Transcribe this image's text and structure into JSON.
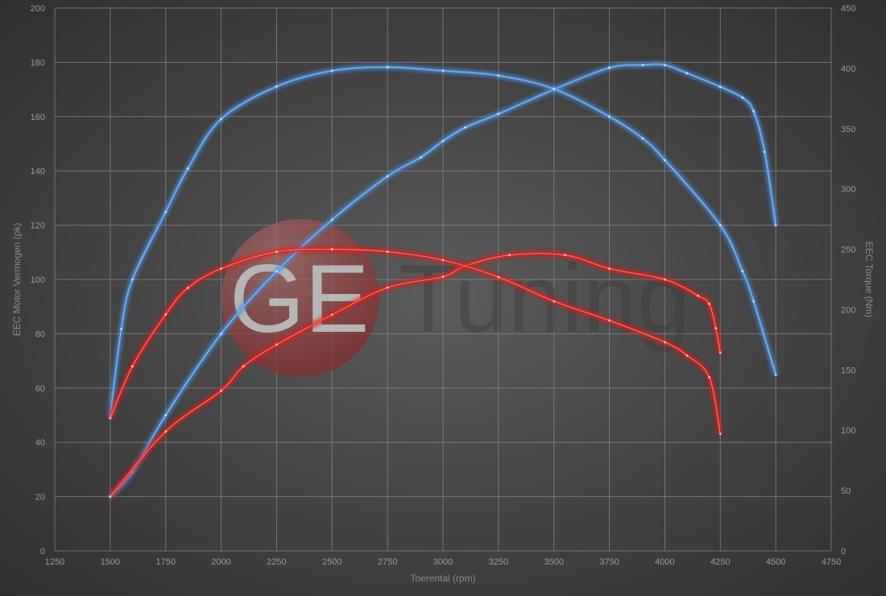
{
  "chart_data": {
    "type": "line",
    "title": "",
    "xlabel": "Toerental (rpm)",
    "ylabel_left": "EEC Motor Vermogen (pk)",
    "ylabel_right": "EEC Torque (Nm)",
    "xlim": [
      1250,
      4750
    ],
    "ylim_left": [
      0,
      200
    ],
    "ylim_right": [
      0,
      450
    ],
    "x_ticks": [
      1250,
      1500,
      1750,
      2000,
      2250,
      2500,
      2750,
      3000,
      3250,
      3500,
      3750,
      4000,
      4250,
      4500,
      4750
    ],
    "y_ticks_left": [
      0,
      20,
      40,
      60,
      80,
      100,
      120,
      140,
      160,
      180,
      200
    ],
    "y_ticks_right": [
      0,
      50,
      100,
      150,
      200,
      250,
      300,
      350,
      400,
      450
    ],
    "grid": true,
    "watermark": "GE Tuning",
    "series": [
      {
        "axis": "left",
        "color": "#4a90e2",
        "x": [
          1500,
          1600,
          1750,
          2000,
          2250,
          2500,
          2750,
          2900,
          3000,
          3100,
          3250,
          3500,
          3750,
          3900,
          4000,
          4100,
          4250,
          4350,
          4400,
          4450,
          4500
        ],
        "y": [
          20,
          29,
          50,
          80,
          103,
          122,
          138,
          145,
          151,
          156,
          161,
          170,
          178,
          179,
          179,
          176,
          171,
          167,
          162,
          147,
          120
        ]
      },
      {
        "axis": "right",
        "color": "#4a90e2",
        "x": [
          1500,
          1550,
          1600,
          1750,
          1850,
          2000,
          2250,
          2500,
          2750,
          3000,
          3250,
          3500,
          3750,
          3900,
          4000,
          4250,
          4350,
          4400,
          4500
        ],
        "y": [
          112,
          184,
          225,
          281,
          317,
          358,
          385,
          398,
          401,
          398,
          394,
          383,
          360,
          342,
          324,
          270,
          232,
          207,
          146
        ]
      },
      {
        "axis": "left",
        "color": "#e8231e",
        "x": [
          1500,
          1750,
          2000,
          2100,
          2250,
          2500,
          2750,
          3000,
          3100,
          3300,
          3550,
          3750,
          4000,
          4150,
          4200,
          4230,
          4250
        ],
        "y": [
          20,
          44,
          59,
          68,
          76,
          87,
          97,
          101,
          105,
          109,
          109,
          104,
          100,
          94,
          91,
          82,
          73
        ]
      },
      {
        "axis": "right",
        "color": "#e8231e",
        "x": [
          1500,
          1600,
          1750,
          1850,
          2000,
          2250,
          2500,
          2750,
          3000,
          3250,
          3500,
          3750,
          4000,
          4100,
          4200,
          4250
        ],
        "y": [
          110,
          153,
          196,
          218,
          234,
          248,
          250,
          248,
          241,
          227,
          207,
          191,
          173,
          162,
          144,
          97
        ]
      }
    ]
  }
}
